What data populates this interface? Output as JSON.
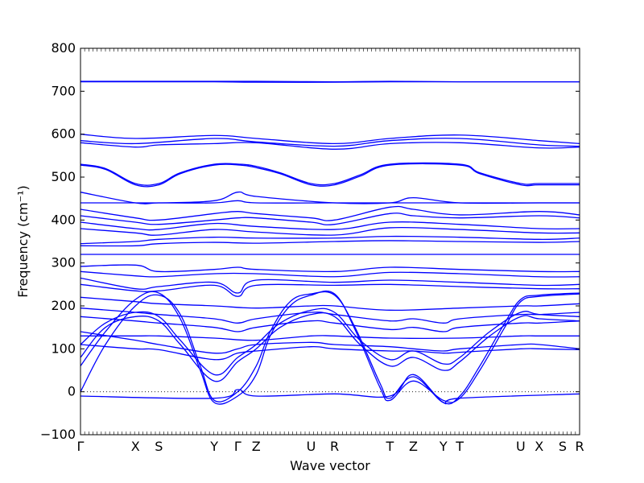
{
  "chart_data": {
    "type": "line",
    "title": "",
    "xlabel": "Wave vector",
    "ylabel": "Frequency (cm⁻¹)",
    "ylim": [
      -100,
      800
    ],
    "yticks": [
      -100,
      0,
      100,
      200,
      300,
      400,
      500,
      600,
      700,
      800
    ],
    "zero_line": true,
    "grid": false,
    "legend": "none",
    "line_color": "#0000ff",
    "xticks": [
      {
        "label": "Γ",
        "x": 0.0
      },
      {
        "label": "X",
        "x": 0.11
      },
      {
        "label": "S",
        "x": 0.157
      },
      {
        "label": "Y",
        "x": 0.268
      },
      {
        "label": "Γ",
        "x": 0.315
      },
      {
        "label": "Z",
        "x": 0.352
      },
      {
        "label": "U",
        "x": 0.462
      },
      {
        "label": "R",
        "x": 0.509
      },
      {
        "label": "T",
        "x": 0.62
      },
      {
        "label": "Z",
        "x": 0.667
      },
      {
        "label": "Y",
        "x": 0.727
      },
      {
        "label": "T",
        "x": 0.76
      },
      {
        "label": "U",
        "x": 0.882
      },
      {
        "label": "X",
        "x": 0.919
      },
      {
        "label": "S",
        "x": 0.966
      },
      {
        "label": "R",
        "x": 1.0
      }
    ],
    "series": [
      {
        "x": [
          0.0,
          0.157,
          0.268,
          0.352,
          0.509,
          0.62,
          0.76,
          0.919,
          1.0
        ],
        "values": [
          722,
          722,
          722,
          721,
          721,
          722,
          722,
          722,
          722
        ]
      },
      {
        "x": [
          0.0,
          0.157,
          0.268,
          0.352,
          0.509,
          0.62,
          0.76,
          0.919,
          1.0
        ],
        "values": [
          723,
          723,
          723,
          723,
          722,
          723,
          722,
          722,
          722
        ]
      },
      {
        "x": [
          0.0,
          0.11,
          0.268,
          0.352,
          0.509,
          0.62,
          0.76,
          0.919,
          1.0
        ],
        "values": [
          600,
          590,
          597,
          590,
          578,
          590,
          598,
          585,
          578
        ]
      },
      {
        "x": [
          0.0,
          0.11,
          0.268,
          0.352,
          0.509,
          0.62,
          0.76,
          0.919,
          1.0
        ],
        "values": [
          585,
          578,
          590,
          582,
          572,
          585,
          590,
          575,
          572
        ]
      },
      {
        "x": [
          0.0,
          0.11,
          0.157,
          0.268,
          0.352,
          0.509,
          0.62,
          0.76,
          0.919,
          1.0
        ],
        "values": [
          580,
          570,
          575,
          578,
          580,
          565,
          578,
          580,
          568,
          570
        ]
      },
      {
        "x": [
          0.0,
          0.05,
          0.11,
          0.157,
          0.2,
          0.268,
          0.32,
          0.352,
          0.4,
          0.462,
          0.509,
          0.56,
          0.62,
          0.76,
          0.8,
          0.882,
          0.919,
          1.0
        ],
        "values": [
          530,
          520,
          485,
          485,
          510,
          530,
          530,
          525,
          510,
          485,
          485,
          505,
          530,
          530,
          510,
          485,
          485,
          485
        ]
      },
      {
        "x": [
          0.0,
          0.05,
          0.11,
          0.157,
          0.2,
          0.268,
          0.32,
          0.352,
          0.4,
          0.462,
          0.509,
          0.56,
          0.62,
          0.76,
          0.8,
          0.882,
          0.919,
          1.0
        ],
        "values": [
          528,
          518,
          482,
          482,
          508,
          528,
          528,
          522,
          508,
          482,
          482,
          502,
          528,
          528,
          508,
          482,
          482,
          482
        ]
      },
      {
        "x": [
          0.0,
          0.11,
          0.157,
          0.268,
          0.315,
          0.352,
          0.509,
          0.62,
          0.667,
          0.76,
          0.919,
          1.0
        ],
        "values": [
          465,
          440,
          440,
          445,
          465,
          455,
          440,
          440,
          452,
          440,
          440,
          440
        ]
      },
      {
        "x": [
          0.0,
          0.11,
          0.157,
          0.268,
          0.315,
          0.352,
          0.509,
          0.62,
          0.667,
          0.76,
          0.919,
          1.0
        ],
        "values": [
          440,
          440,
          440,
          440,
          445,
          440,
          440,
          440,
          440,
          440,
          440,
          440
        ]
      },
      {
        "x": [
          0.0,
          0.11,
          0.157,
          0.268,
          0.315,
          0.352,
          0.462,
          0.509,
          0.62,
          0.667,
          0.76,
          0.919,
          1.0
        ],
        "values": [
          425,
          405,
          400,
          415,
          420,
          415,
          405,
          400,
          430,
          425,
          412,
          420,
          412
        ]
      },
      {
        "x": [
          0.0,
          0.11,
          0.157,
          0.268,
          0.315,
          0.352,
          0.462,
          0.509,
          0.62,
          0.667,
          0.76,
          0.919,
          1.0
        ],
        "values": [
          410,
          395,
          390,
          400,
          405,
          405,
          395,
          390,
          415,
          410,
          405,
          410,
          405
        ]
      },
      {
        "x": [
          0.0,
          0.11,
          0.157,
          0.268,
          0.352,
          0.509,
          0.62,
          0.76,
          0.919,
          1.0
        ],
        "values": [
          395,
          380,
          378,
          392,
          385,
          378,
          395,
          390,
          380,
          380
        ]
      },
      {
        "x": [
          0.0,
          0.11,
          0.157,
          0.268,
          0.352,
          0.509,
          0.62,
          0.76,
          0.919,
          1.0
        ],
        "values": [
          380,
          370,
          365,
          378,
          372,
          365,
          382,
          378,
          370,
          370
        ]
      },
      {
        "x": [
          0.0,
          0.11,
          0.157,
          0.268,
          0.352,
          0.509,
          0.62,
          0.76,
          0.919,
          1.0
        ],
        "values": [
          345,
          350,
          355,
          360,
          358,
          358,
          362,
          360,
          355,
          358
        ]
      },
      {
        "x": [
          0.0,
          0.11,
          0.157,
          0.268,
          0.352,
          0.509,
          0.62,
          0.76,
          0.919,
          1.0
        ],
        "values": [
          340,
          340,
          345,
          348,
          346,
          350,
          352,
          350,
          348,
          350
        ]
      },
      {
        "x": [
          0.0,
          0.11,
          0.157,
          0.268,
          0.352,
          0.509,
          0.62,
          0.76,
          0.919,
          1.0
        ],
        "values": [
          320,
          320,
          320,
          320,
          320,
          320,
          320,
          320,
          320,
          320
        ]
      },
      {
        "x": [
          0.0,
          0.11,
          0.157,
          0.268,
          0.315,
          0.352,
          0.509,
          0.62,
          0.76,
          0.919,
          1.0
        ],
        "values": [
          292,
          295,
          280,
          285,
          290,
          285,
          280,
          290,
          285,
          280,
          280
        ]
      },
      {
        "x": [
          0.0,
          0.11,
          0.157,
          0.268,
          0.352,
          0.509,
          0.62,
          0.76,
          0.919,
          1.0
        ],
        "values": [
          280,
          270,
          268,
          275,
          275,
          268,
          278,
          275,
          268,
          268
        ]
      },
      {
        "x": [
          0.0,
          0.11,
          0.157,
          0.268,
          0.315,
          0.352,
          0.509,
          0.62,
          0.76,
          0.919,
          1.0
        ],
        "values": [
          265,
          240,
          245,
          255,
          230,
          260,
          255,
          260,
          255,
          248,
          250
        ]
      },
      {
        "x": [
          0.0,
          0.11,
          0.157,
          0.268,
          0.315,
          0.352,
          0.509,
          0.62,
          0.76,
          0.919,
          1.0
        ],
        "values": [
          250,
          235,
          235,
          248,
          222,
          248,
          248,
          250,
          245,
          240,
          240
        ]
      },
      {
        "x": [
          0.0,
          0.05,
          0.11,
          0.157,
          0.2,
          0.24,
          0.268,
          0.315,
          0.352,
          0.38,
          0.42,
          0.462,
          0.509,
          0.55,
          0.6,
          0.62,
          0.667,
          0.727,
          0.76,
          0.8,
          0.85,
          0.882,
          0.919,
          1.0
        ],
        "values": [
          0,
          110,
          200,
          225,
          180,
          60,
          -20,
          0,
          60,
          140,
          210,
          228,
          225,
          150,
          20,
          -15,
          35,
          -25,
          -10,
          60,
          160,
          215,
          225,
          230
        ]
      },
      {
        "x": [
          0.0,
          0.05,
          0.11,
          0.157,
          0.2,
          0.24,
          0.268,
          0.315,
          0.352,
          0.38,
          0.42,
          0.462,
          0.509,
          0.55,
          0.6,
          0.62,
          0.667,
          0.727,
          0.76,
          0.8,
          0.85,
          0.882,
          0.919,
          1.0
        ],
        "values": [
          60,
          140,
          215,
          230,
          170,
          50,
          -25,
          -10,
          40,
          130,
          200,
          225,
          228,
          145,
          10,
          -20,
          25,
          -20,
          -15,
          50,
          150,
          210,
          222,
          228
        ]
      },
      {
        "x": [
          0.0,
          0.05,
          0.11,
          0.157,
          0.2,
          0.268,
          0.315,
          0.352,
          0.4,
          0.462,
          0.509,
          0.56,
          0.62,
          0.667,
          0.727,
          0.76,
          0.82,
          0.882,
          0.919,
          1.0
        ],
        "values": [
          80,
          150,
          175,
          165,
          110,
          25,
          70,
          100,
          150,
          180,
          175,
          110,
          60,
          80,
          50,
          70,
          130,
          175,
          170,
          165
        ]
      },
      {
        "x": [
          0.0,
          0.05,
          0.11,
          0.157,
          0.2,
          0.268,
          0.315,
          0.352,
          0.4,
          0.462,
          0.509,
          0.56,
          0.62,
          0.667,
          0.727,
          0.76,
          0.82,
          0.882,
          0.919,
          1.0
        ],
        "values": [
          110,
          160,
          185,
          175,
          120,
          40,
          80,
          110,
          160,
          190,
          185,
          120,
          75,
          95,
          65,
          80,
          140,
          185,
          180,
          175
        ]
      },
      {
        "x": [
          0.0,
          0.11,
          0.157,
          0.268,
          0.315,
          0.352,
          0.462,
          0.509,
          0.62,
          0.667,
          0.727,
          0.76,
          0.882,
          0.919,
          1.0
        ],
        "values": [
          140,
          120,
          110,
          90,
          100,
          110,
          115,
          110,
          105,
          100,
          95,
          100,
          110,
          110,
          100
        ]
      },
      {
        "x": [
          0.0,
          0.11,
          0.157,
          0.268,
          0.315,
          0.352,
          0.462,
          0.509,
          0.62,
          0.667,
          0.727,
          0.76,
          0.882,
          0.919,
          1.0
        ],
        "values": [
          110,
          100,
          98,
          75,
          90,
          95,
          105,
          100,
          95,
          95,
          90,
          92,
          100,
          100,
          98
        ]
      },
      {
        "x": [
          0.0,
          0.11,
          0.157,
          0.268,
          0.315,
          0.352,
          0.462,
          0.509,
          0.62,
          0.667,
          0.727,
          0.76,
          0.882,
          0.919,
          1.0
        ],
        "values": [
          195,
          185,
          180,
          170,
          160,
          170,
          185,
          180,
          165,
          170,
          160,
          170,
          180,
          180,
          185
        ]
      },
      {
        "x": [
          0.0,
          0.11,
          0.157,
          0.268,
          0.315,
          0.352,
          0.462,
          0.509,
          0.62,
          0.667,
          0.727,
          0.76,
          0.882,
          0.919,
          1.0
        ],
        "values": [
          175,
          165,
          160,
          150,
          140,
          150,
          165,
          160,
          145,
          150,
          140,
          150,
          160,
          160,
          165
        ]
      },
      {
        "x": [
          0.0,
          0.11,
          0.157,
          0.268,
          0.352,
          0.462,
          0.509,
          0.62,
          0.76,
          0.882,
          0.919,
          1.0
        ],
        "values": [
          220,
          210,
          205,
          200,
          195,
          200,
          200,
          190,
          195,
          200,
          200,
          205
        ]
      },
      {
        "x": [
          0.0,
          0.11,
          0.157,
          0.268,
          0.352,
          0.462,
          0.509,
          0.62,
          0.76,
          0.882,
          0.919,
          1.0
        ],
        "values": [
          130,
          130,
          130,
          125,
          120,
          130,
          130,
          125,
          125,
          130,
          130,
          130
        ]
      },
      {
        "x": [
          0.0,
          0.268,
          0.315,
          0.352,
          0.509,
          0.62,
          0.667,
          0.727,
          0.76,
          1.0
        ],
        "values": [
          -10,
          -15,
          5,
          -10,
          -5,
          -10,
          40,
          -25,
          -15,
          -5
        ]
      }
    ]
  }
}
